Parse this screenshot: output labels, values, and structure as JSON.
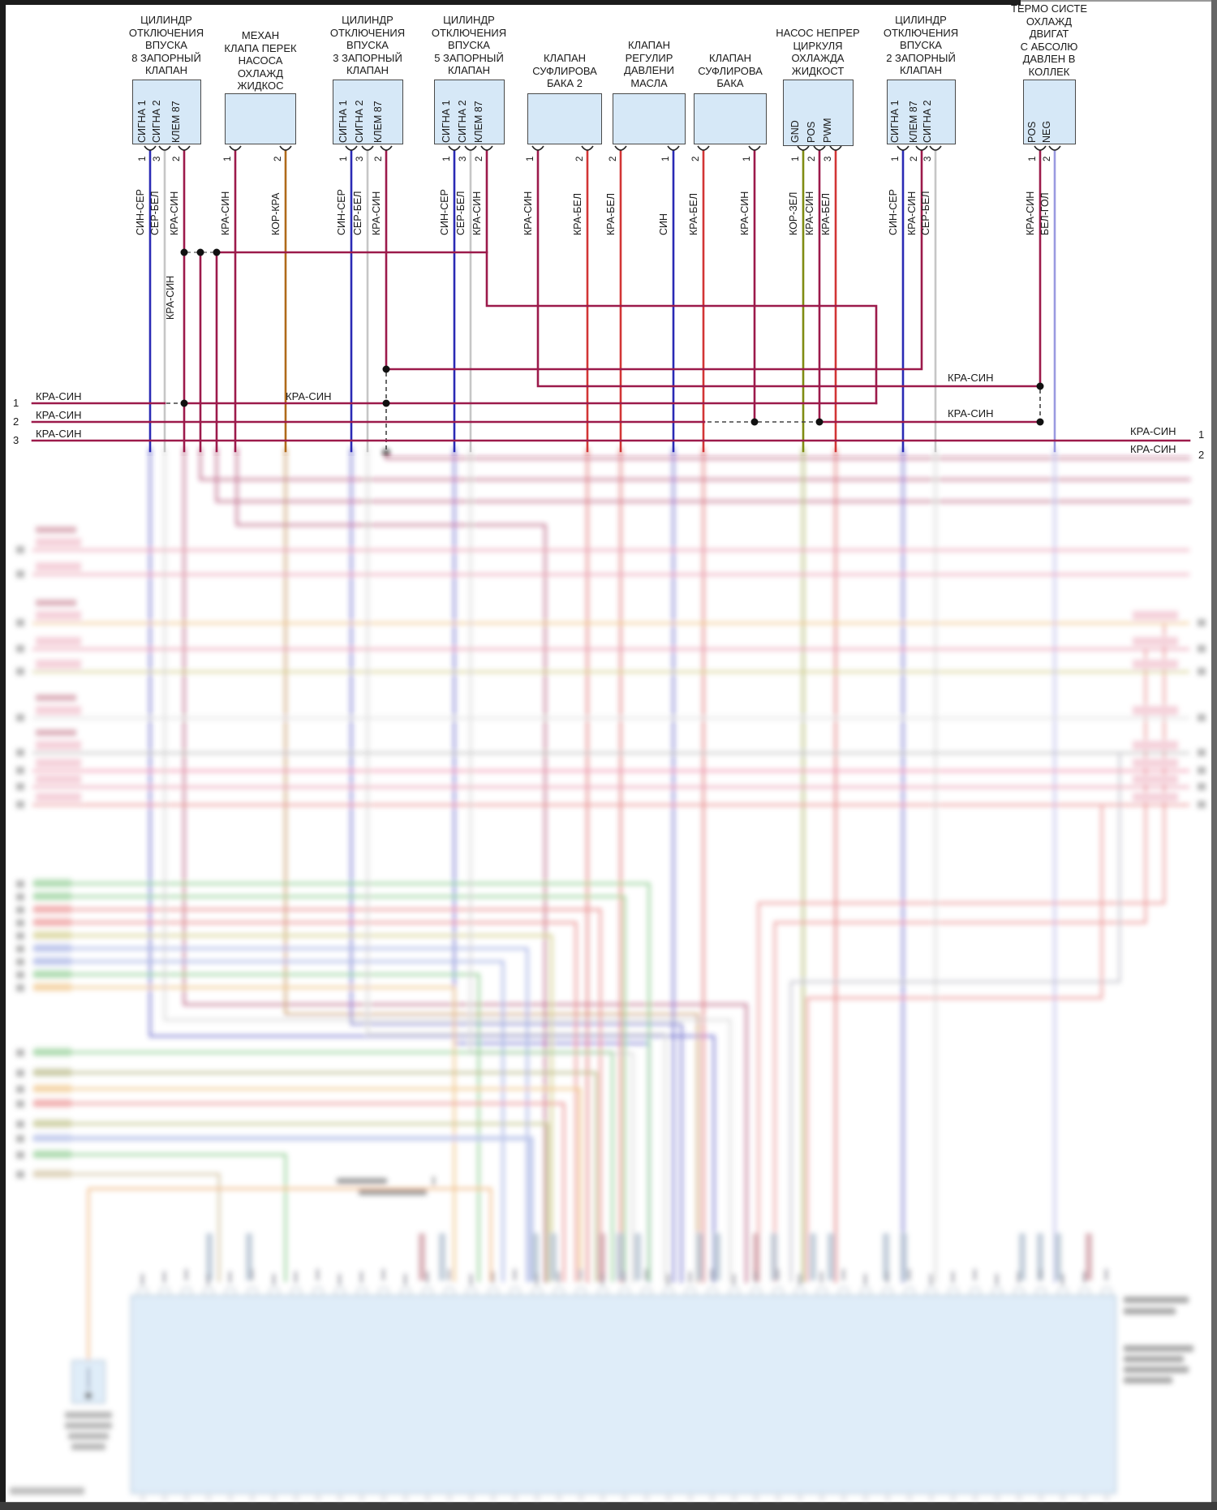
{
  "colors": {
    "kra_sin": "#9c1a4b",
    "sin_ser": "#2a2ab5",
    "sin": "#2a2ab5",
    "ser_bel": "#c6c6c6",
    "kra_bel": "#d23535",
    "kor_kra": "#b06a1a",
    "kor_zel": "#7f8c12",
    "bel_gol": "#9a9ae0",
    "box_fill": "#d6e8f7"
  },
  "components": [
    {
      "title": "ЦИЛИНДР\nОТКЛЮЧЕНИЯ\nВПУСКА\n8 ЗАПОРНЫЙ\nКЛАПАН",
      "pins": [
        {
          "num": "1",
          "label": "СИГНА 1",
          "wire": "СИН-СЕР",
          "color": "sin_ser"
        },
        {
          "num": "3",
          "label": "СИГНА 2",
          "wire": "СЕР-БЕЛ",
          "color": "ser_bel"
        },
        {
          "num": "2",
          "label": "КЛЕМ 87",
          "wire": "КРА-СИН",
          "color": "kra_sin"
        }
      ]
    },
    {
      "title": "МЕХАН\nКЛАПА ПЕРЕК\nНАСОСА\nОХЛАЖД\nЖИДКОС",
      "pins": [
        {
          "num": "1",
          "label": "",
          "wire": "КРА-СИН",
          "color": "kra_sin"
        },
        {
          "num": "2",
          "label": "",
          "wire": "КОР-КРА",
          "color": "kor_kra"
        }
      ]
    },
    {
      "title": "ЦИЛИНДР\nОТКЛЮЧЕНИЯ\nВПУСКА\n3 ЗАПОРНЫЙ\nКЛАПАН",
      "pins": [
        {
          "num": "1",
          "label": "СИГНА 1",
          "wire": "СИН-СЕР",
          "color": "sin_ser"
        },
        {
          "num": "3",
          "label": "СИГНА 2",
          "wire": "СЕР-БЕЛ",
          "color": "ser_bel"
        },
        {
          "num": "2",
          "label": "КЛЕМ 87",
          "wire": "КРА-СИН",
          "color": "kra_sin"
        }
      ]
    },
    {
      "title": "ЦИЛИНДР\nОТКЛЮЧЕНИЯ\nВПУСКА\n5 ЗАПОРНЫЙ\nКЛАПАН",
      "pins": [
        {
          "num": "1",
          "label": "СИГНА 1",
          "wire": "СИН-СЕР",
          "color": "sin_ser"
        },
        {
          "num": "3",
          "label": "СИГНА 2",
          "wire": "СЕР-БЕЛ",
          "color": "ser_bel"
        },
        {
          "num": "2",
          "label": "КЛЕМ 87",
          "wire": "КРА-СИН",
          "color": "kra_sin"
        }
      ]
    },
    {
      "title": "КЛАПАН\nСУФЛИРОВА\nБАКА 2",
      "pins": [
        {
          "num": "1",
          "label": "",
          "wire": "КРА-СИН",
          "color": "kra_sin"
        },
        {
          "num": "2",
          "label": "",
          "wire": "КРА-БЕЛ",
          "color": "kra_bel"
        }
      ]
    },
    {
      "title": "КЛАПАН\nРЕГУЛИР\nДАВЛЕНИ\nМАСЛА",
      "pins": [
        {
          "num": "2",
          "label": "",
          "wire": "КРА-БЕЛ",
          "color": "kra_bel"
        },
        {
          "num": "1",
          "label": "",
          "wire": "СИН",
          "color": "sin"
        }
      ]
    },
    {
      "title": "КЛАПАН\nСУФЛИРОВА\nБАКА",
      "pins": [
        {
          "num": "2",
          "label": "",
          "wire": "КРА-БЕЛ",
          "color": "kra_bel"
        },
        {
          "num": "1",
          "label": "",
          "wire": "КРА-СИН",
          "color": "kra_sin"
        }
      ]
    },
    {
      "title": "НАСОС НЕПРЕР\nЦИРКУЛЯ\nОХЛАЖДА\nЖИДКОСТ",
      "pins": [
        {
          "num": "1",
          "label": "GND",
          "wire": "КОР-ЗЕЛ",
          "color": "kor_zel"
        },
        {
          "num": "2",
          "label": "POS",
          "wire": "КРА-СИН",
          "color": "kra_sin"
        },
        {
          "num": "3",
          "label": "PWM",
          "wire": "КРА-БЕЛ",
          "color": "kra_bel"
        }
      ]
    },
    {
      "title": "ЦИЛИНДР\nОТКЛЮЧЕНИЯ\nВПУСКА\n2 ЗАПОРНЫЙ\nКЛАПАН",
      "pins": [
        {
          "num": "1",
          "label": "СИГНА 1",
          "wire": "СИН-СЕР",
          "color": "sin_ser"
        },
        {
          "num": "2",
          "label": "КЛЕМ 87",
          "wire": "КРА-СИН",
          "color": "kra_sin"
        },
        {
          "num": "3",
          "label": "СИГНА 2",
          "wire": "СЕР-БЕЛ",
          "color": "ser_bel"
        }
      ]
    },
    {
      "title": "ТЕРМО СИСТЕ\nОХЛАЖД\nДВИГАТ\nС АБСОЛЮ\nДАВЛЕН В\nКОЛЛЕК",
      "pins": [
        {
          "num": "1",
          "label": "POS",
          "wire": "КРА-СИН",
          "color": "kra_sin"
        },
        {
          "num": "2",
          "label": "NEG",
          "wire": "БЕЛ-ГОЛ",
          "color": "bel_gol"
        }
      ]
    }
  ],
  "bus": {
    "wire_name": "КРА-СИН",
    "left_rows": [
      {
        "num": "1",
        "label": "КРА-СИН"
      },
      {
        "num": "2",
        "label": "КРА-СИН"
      },
      {
        "num": "3",
        "label": "КРА-СИН"
      }
    ],
    "mid_label": "КРА-СИН",
    "vertical_wire_label": "КРА-СИН",
    "right_labels": [
      {
        "label": "КРА-СИН"
      },
      {
        "label": "КРА-СИН"
      },
      {
        "label": "КРА-СИН"
      },
      {
        "label": "КРА-СИН"
      }
    ],
    "right_rows": [
      {
        "num": "1"
      },
      {
        "num": "2"
      }
    ]
  }
}
